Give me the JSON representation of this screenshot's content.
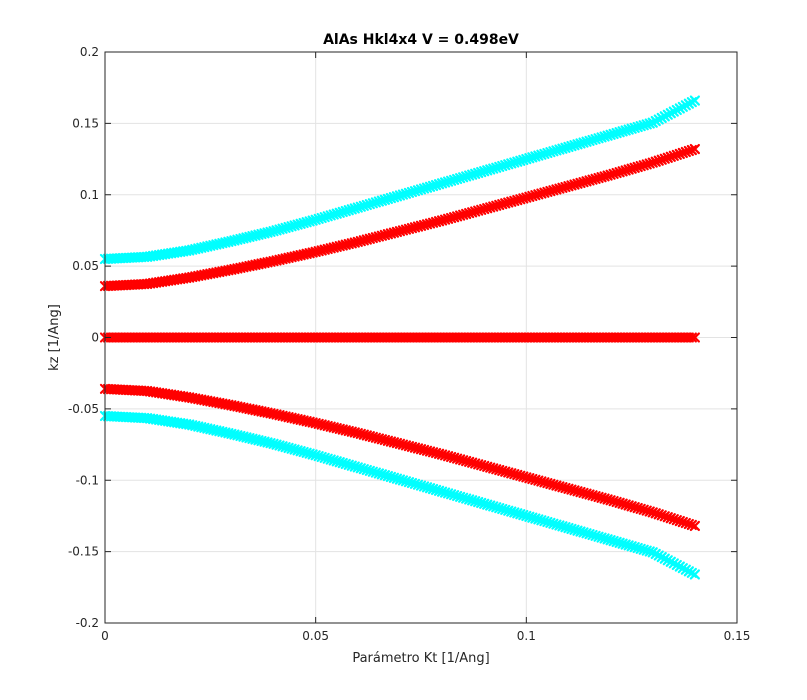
{
  "chart_data": {
    "type": "scatter",
    "title": "AlAs Hkl4x4 V = 0.498eV",
    "xlabel": "Parámetro Kt [1/Ang]",
    "ylabel": "kz [1/Ang]",
    "xlim": [
      0,
      0.15
    ],
    "ylim": [
      -0.2,
      0.2
    ],
    "x_ticks": [
      0,
      0.05,
      0.1,
      0.15
    ],
    "x_tick_labels": [
      "0",
      "0.05",
      "0.1",
      "0.15"
    ],
    "y_ticks": [
      -0.2,
      -0.15,
      -0.1,
      -0.05,
      0,
      0.05,
      0.1,
      0.15,
      0.2
    ],
    "y_tick_labels": [
      "-0.2",
      "-0.15",
      "-0.1",
      "-0.05",
      "0",
      "0.05",
      "0.1",
      "0.15",
      "0.2"
    ],
    "grid": true,
    "marker": "x",
    "series": [
      {
        "color": "#00ffff",
        "x": [
          0,
          0.01,
          0.02,
          0.03,
          0.04,
          0.05,
          0.06,
          0.07,
          0.08,
          0.09,
          0.1,
          0.11,
          0.12,
          0.13,
          0.14
        ],
        "y": [
          0.055,
          0.0565,
          0.061,
          0.0675,
          0.0745,
          0.0825,
          0.091,
          0.0995,
          0.108,
          0.1165,
          0.125,
          0.1335,
          0.142,
          0.1505,
          0.166
        ]
      },
      {
        "color": "#ff0000",
        "x": [
          0,
          0.01,
          0.02,
          0.03,
          0.04,
          0.05,
          0.06,
          0.07,
          0.08,
          0.09,
          0.1,
          0.11,
          0.12,
          0.13,
          0.14
        ],
        "y": [
          0.036,
          0.0375,
          0.042,
          0.0475,
          0.0535,
          0.06,
          0.067,
          0.0745,
          0.082,
          0.09,
          0.098,
          0.106,
          0.114,
          0.1225,
          0.132
        ]
      },
      {
        "color": "#ff0000",
        "x": [
          0,
          0.01,
          0.02,
          0.03,
          0.04,
          0.05,
          0.06,
          0.07,
          0.08,
          0.09,
          0.1,
          0.11,
          0.12,
          0.13,
          0.14
        ],
        "y": [
          0,
          0,
          0,
          0,
          0,
          0,
          0,
          0,
          0,
          0,
          0,
          0,
          0,
          0,
          0
        ]
      },
      {
        "color": "#ff0000",
        "x": [
          0,
          0.01,
          0.02,
          0.03,
          0.04,
          0.05,
          0.06,
          0.07,
          0.08,
          0.09,
          0.1,
          0.11,
          0.12,
          0.13,
          0.14
        ],
        "y": [
          -0.036,
          -0.0375,
          -0.042,
          -0.0475,
          -0.0535,
          -0.06,
          -0.067,
          -0.0745,
          -0.082,
          -0.09,
          -0.098,
          -0.106,
          -0.114,
          -0.1225,
          -0.132
        ]
      },
      {
        "color": "#00ffff",
        "x": [
          0,
          0.01,
          0.02,
          0.03,
          0.04,
          0.05,
          0.06,
          0.07,
          0.08,
          0.09,
          0.1,
          0.11,
          0.12,
          0.13,
          0.14
        ],
        "y": [
          -0.055,
          -0.0565,
          -0.061,
          -0.0675,
          -0.0745,
          -0.0825,
          -0.091,
          -0.0995,
          -0.108,
          -0.1165,
          -0.125,
          -0.1335,
          -0.142,
          -0.1505,
          -0.166
        ]
      }
    ]
  }
}
